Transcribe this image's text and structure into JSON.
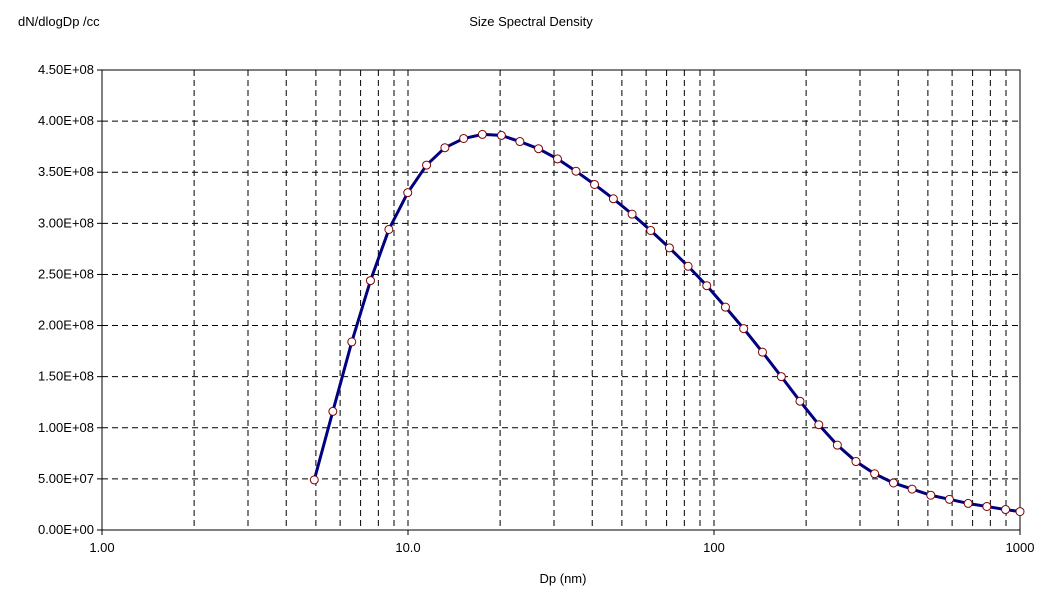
{
  "chart_data": {
    "type": "line",
    "title": "Size Spectral Density",
    "ylabel": "dN/dlogDp /cc",
    "xlabel": "Dp (nm)",
    "x_scale": "log",
    "xlim": [
      1,
      1000
    ],
    "ylim": [
      0,
      450000000
    ],
    "grid": true,
    "x_tick_labels": [
      {
        "value": 1,
        "label": "1.00"
      },
      {
        "value": 10,
        "label": "10.0"
      },
      {
        "value": 100,
        "label": "100"
      },
      {
        "value": 1000,
        "label": "1000"
      }
    ],
    "y_tick_labels": [
      {
        "value": 0,
        "label": "0.00E+00"
      },
      {
        "value": 50000000,
        "label": "5.00E+07"
      },
      {
        "value": 100000000,
        "label": "1.00E+08"
      },
      {
        "value": 150000000,
        "label": "1.50E+08"
      },
      {
        "value": 200000000,
        "label": "2.00E+08"
      },
      {
        "value": 250000000,
        "label": "2.50E+08"
      },
      {
        "value": 300000000,
        "label": "3.00E+08"
      },
      {
        "value": 350000000,
        "label": "3.50E+08"
      },
      {
        "value": 400000000,
        "label": "4.00E+08"
      },
      {
        "value": 450000000,
        "label": "4.50E+08"
      }
    ],
    "line_color": "#000080",
    "marker_fill": "#ffffff",
    "marker_edge": "#800000",
    "x": [
      4.94,
      5.68,
      6.55,
      7.54,
      8.66,
      9.98,
      11.5,
      13.2,
      15.2,
      17.5,
      20.2,
      23.2,
      26.7,
      30.8,
      35.4,
      40.7,
      46.9,
      54.0,
      62.1,
      71.5,
      82.3,
      94.7,
      109,
      125,
      144,
      166,
      191,
      220,
      253,
      291,
      335,
      386,
      444,
      511,
      588,
      677,
      779,
      897,
      1000
    ],
    "series": [
      {
        "values": [
          49000000,
          116000000,
          184000000,
          244000000,
          294000000,
          330000000,
          357000000,
          374000000,
          383000000,
          387000000,
          386000000,
          380000000,
          373000000,
          363000000,
          351000000,
          338000000,
          324000000,
          309000000,
          293000000,
          276000000,
          258000000,
          239000000,
          218000000,
          197000000,
          174000000,
          150000000,
          126000000,
          103000000,
          83000000,
          67000000,
          55000000,
          46000000,
          40000000,
          34000000,
          30000000,
          26000000,
          23000000,
          20000000,
          18000000
        ]
      }
    ]
  }
}
